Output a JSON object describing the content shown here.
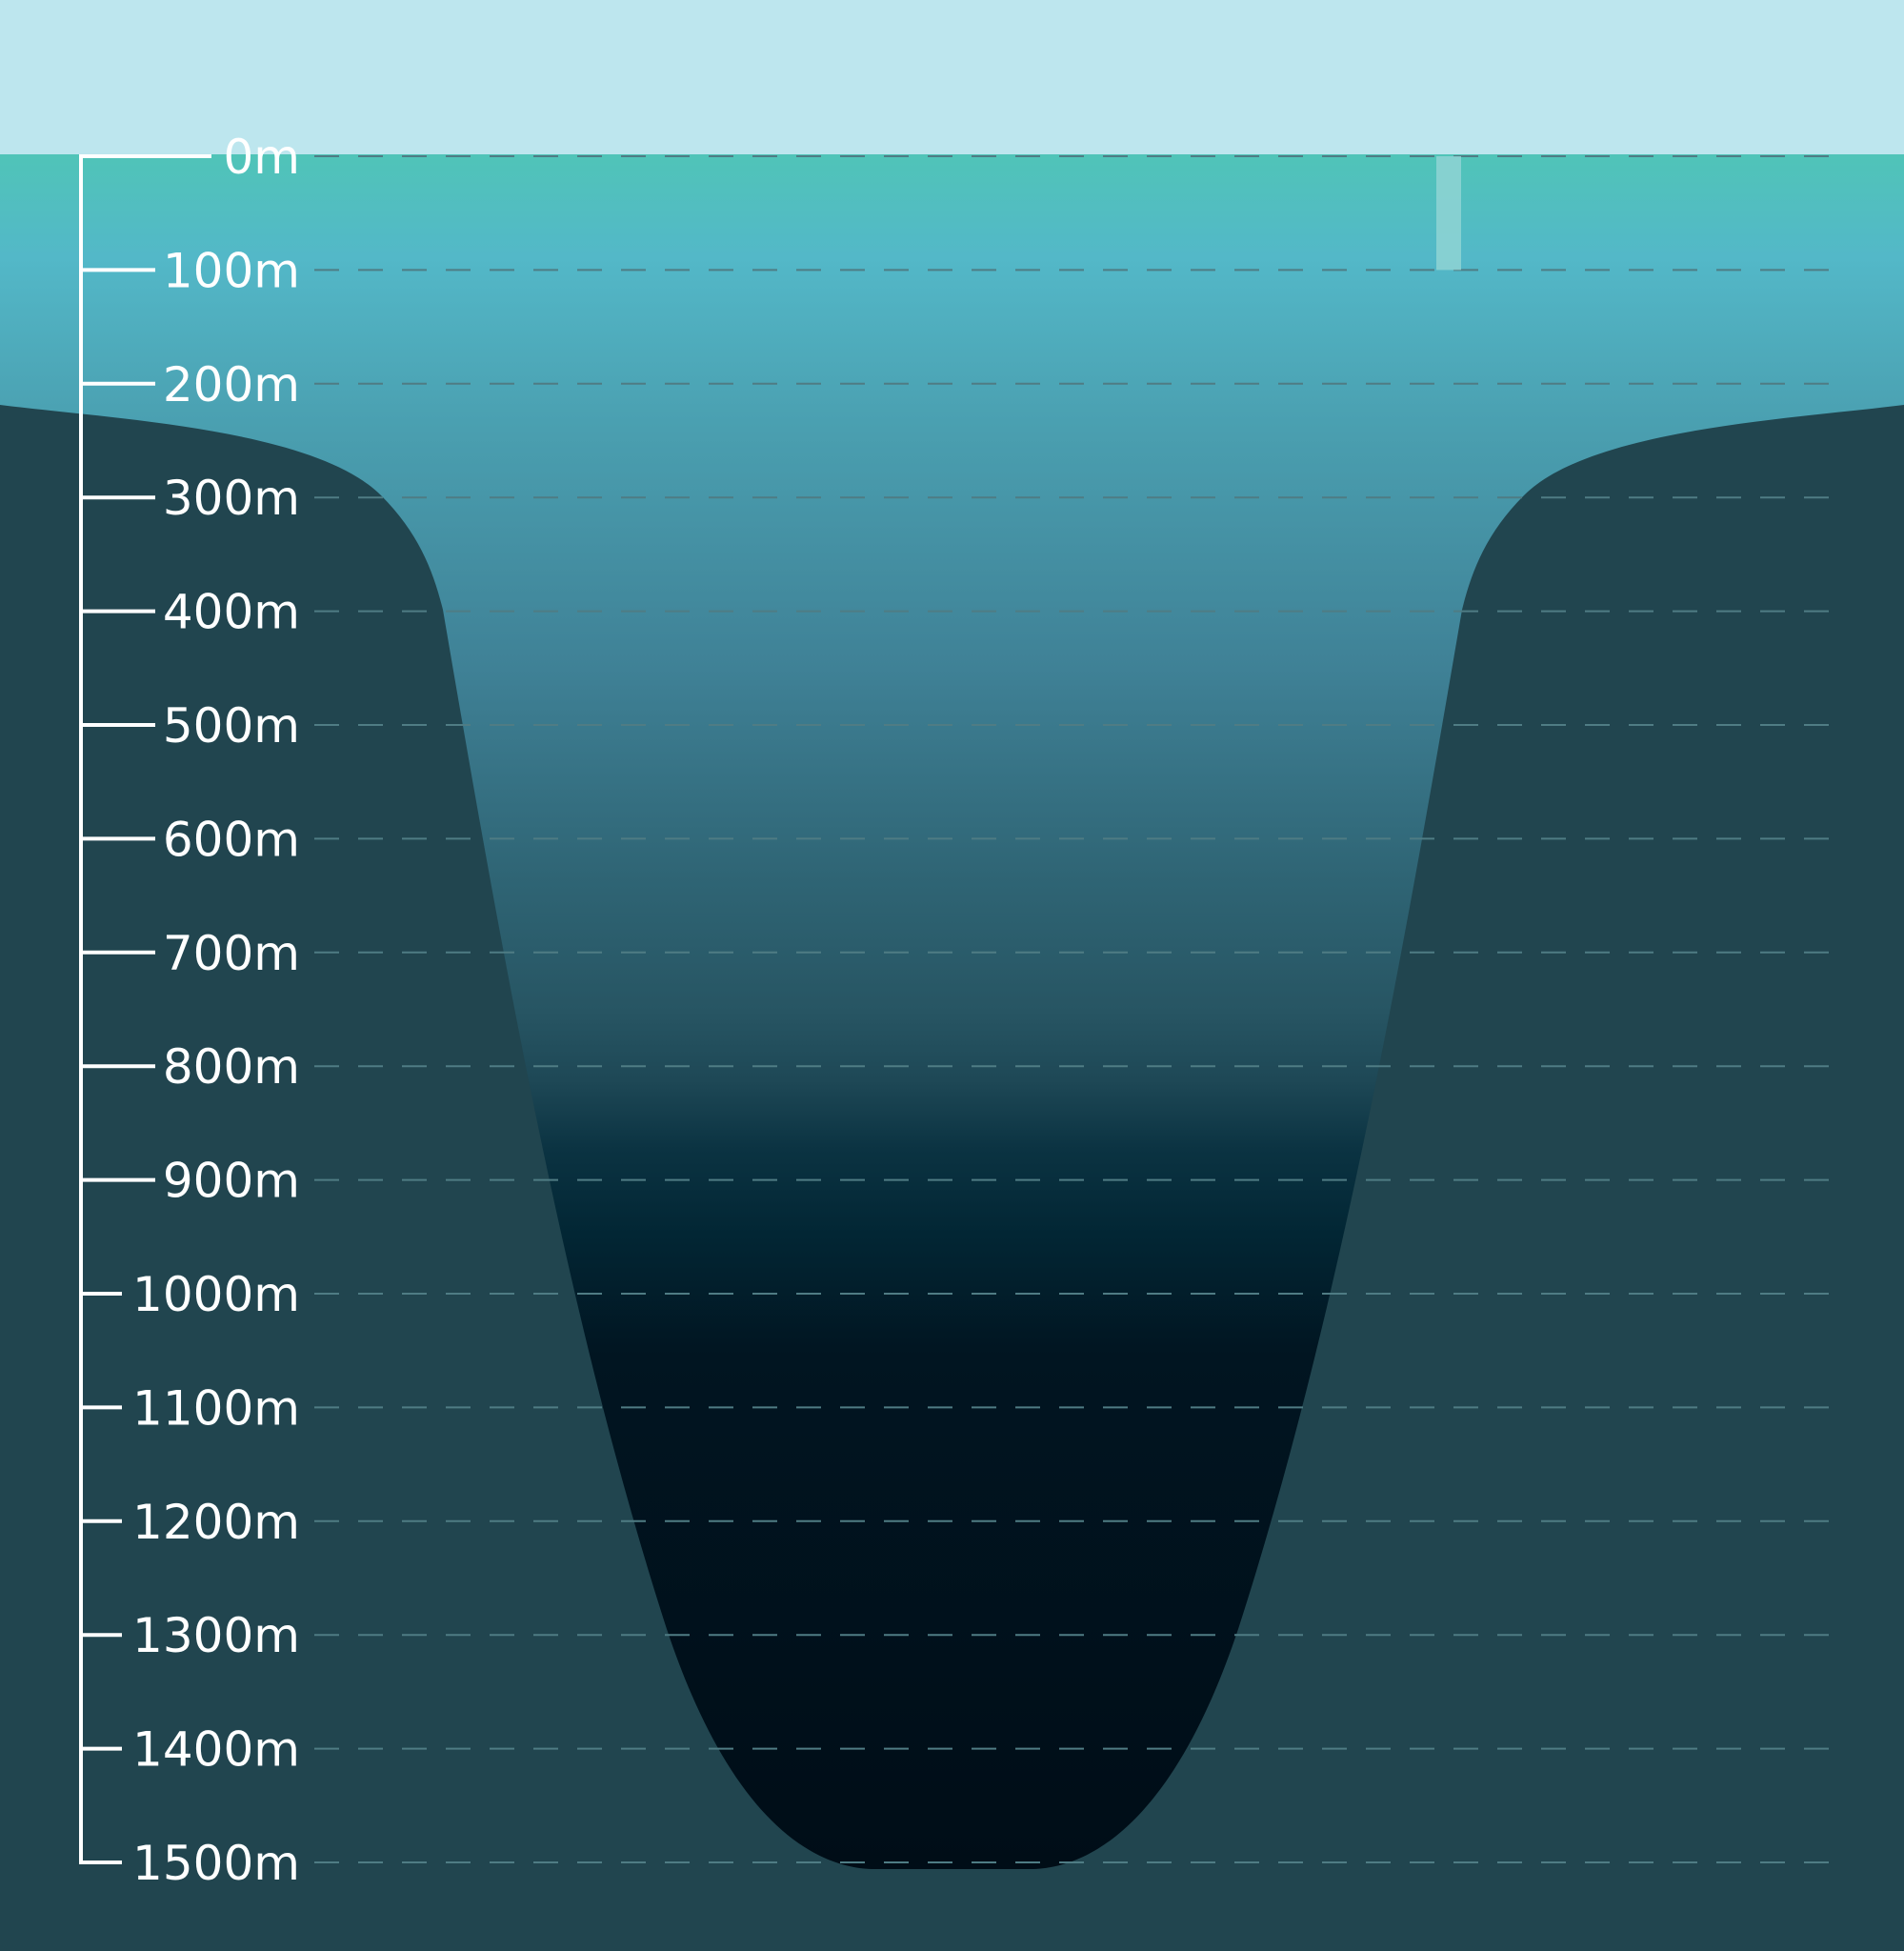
{
  "depth_scale": {
    "unit": "m",
    "max_depth": 1500,
    "tick_step": 100,
    "labels": [
      "0m",
      "100m",
      "200m",
      "300m",
      "400m",
      "500m",
      "600m",
      "700m",
      "800m",
      "900m",
      "1000m",
      "1100m",
      "1200m",
      "1300m",
      "1400m",
      "1500m"
    ]
  },
  "colors": {
    "sky": "#bde6ee",
    "surface_water": "#50c4b8",
    "mid_water": "#3f8a9c",
    "deep_water": "#245360",
    "abyss": "#000d17",
    "seabed": "#21454f",
    "dashed_line": "#4f7c84",
    "scale": "#ffffff",
    "marker": "#8fd3d3"
  },
  "marker": {
    "from_depth": 0,
    "to_depth": 100
  }
}
